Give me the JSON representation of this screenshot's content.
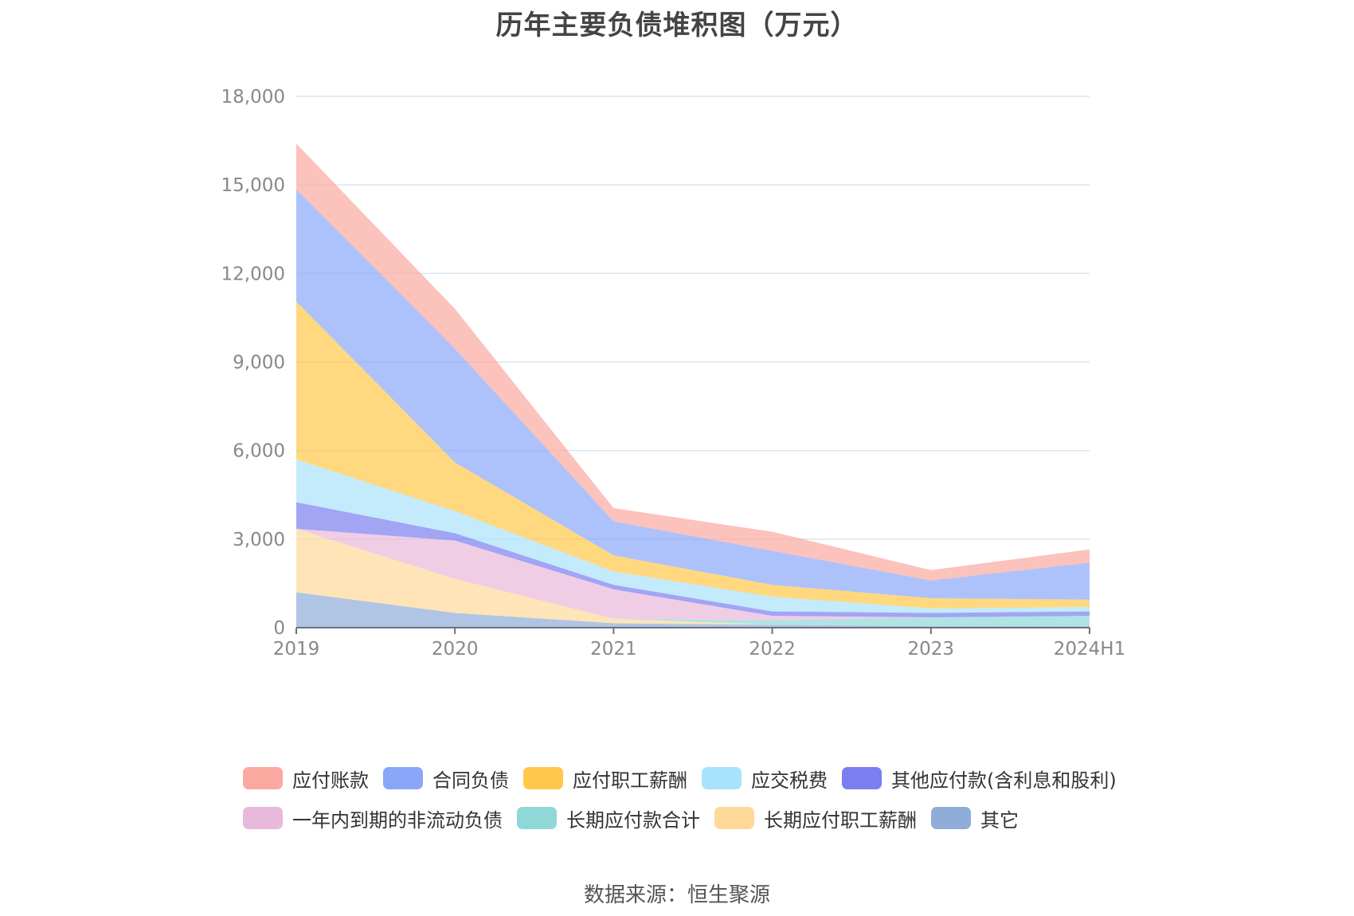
{
  "title": "历年主要负债堆积图（万元）",
  "source": "数据来源：恒生聚源",
  "chart_data": {
    "type": "area",
    "stacked": true,
    "title": "历年主要负债堆积图（万元）",
    "xlabel": "",
    "ylabel": "",
    "ylim": [
      0,
      18000
    ],
    "yticks": [
      "0",
      "3,000",
      "6,000",
      "9,000",
      "12,000",
      "15,000",
      "18,000"
    ],
    "categories": [
      "2019",
      "2020",
      "2021",
      "2022",
      "2023",
      "2024H1"
    ],
    "grid": true,
    "legend_position": "bottom",
    "series": [
      {
        "name": "其它",
        "color": "#8fadd9",
        "values": [
          1200,
          500,
          150,
          100,
          50,
          50
        ]
      },
      {
        "name": "长期应付职工薪酬",
        "color": "#ffd99a",
        "values": [
          2150,
          1150,
          150,
          0,
          0,
          0
        ]
      },
      {
        "name": "长期应付款合计",
        "color": "#8fd8d8",
        "values": [
          0,
          0,
          0,
          150,
          300,
          350
        ]
      },
      {
        "name": "一年内到期的非流动负债",
        "color": "#e8b9da",
        "values": [
          0,
          1300,
          1000,
          150,
          0,
          0
        ]
      },
      {
        "name": "其他应付款(含利息和股利)",
        "color": "#7b7ef0",
        "values": [
          900,
          250,
          150,
          150,
          150,
          150
        ]
      },
      {
        "name": "应交税费",
        "color": "#a9e2fb",
        "values": [
          1450,
          750,
          450,
          500,
          150,
          150
        ]
      },
      {
        "name": "应付职工薪酬",
        "color": "#ffc84a",
        "values": [
          5350,
          1650,
          550,
          400,
          350,
          250
        ]
      },
      {
        "name": "合同负债",
        "color": "#8aa6f8",
        "values": [
          3800,
          3850,
          1150,
          1150,
          600,
          1250
        ]
      },
      {
        "name": "应付账款",
        "color": "#fba8a0",
        "values": [
          1550,
          1350,
          450,
          650,
          350,
          450
        ]
      }
    ]
  },
  "legend_rows": [
    [
      "应付账款",
      "合同负债",
      "应付职工薪酬",
      "应交税费",
      "其他应付款(含利息和股利)"
    ],
    [
      "一年内到期的非流动负债",
      "长期应付款合计",
      "长期应付职工薪酬",
      "其它"
    ]
  ]
}
